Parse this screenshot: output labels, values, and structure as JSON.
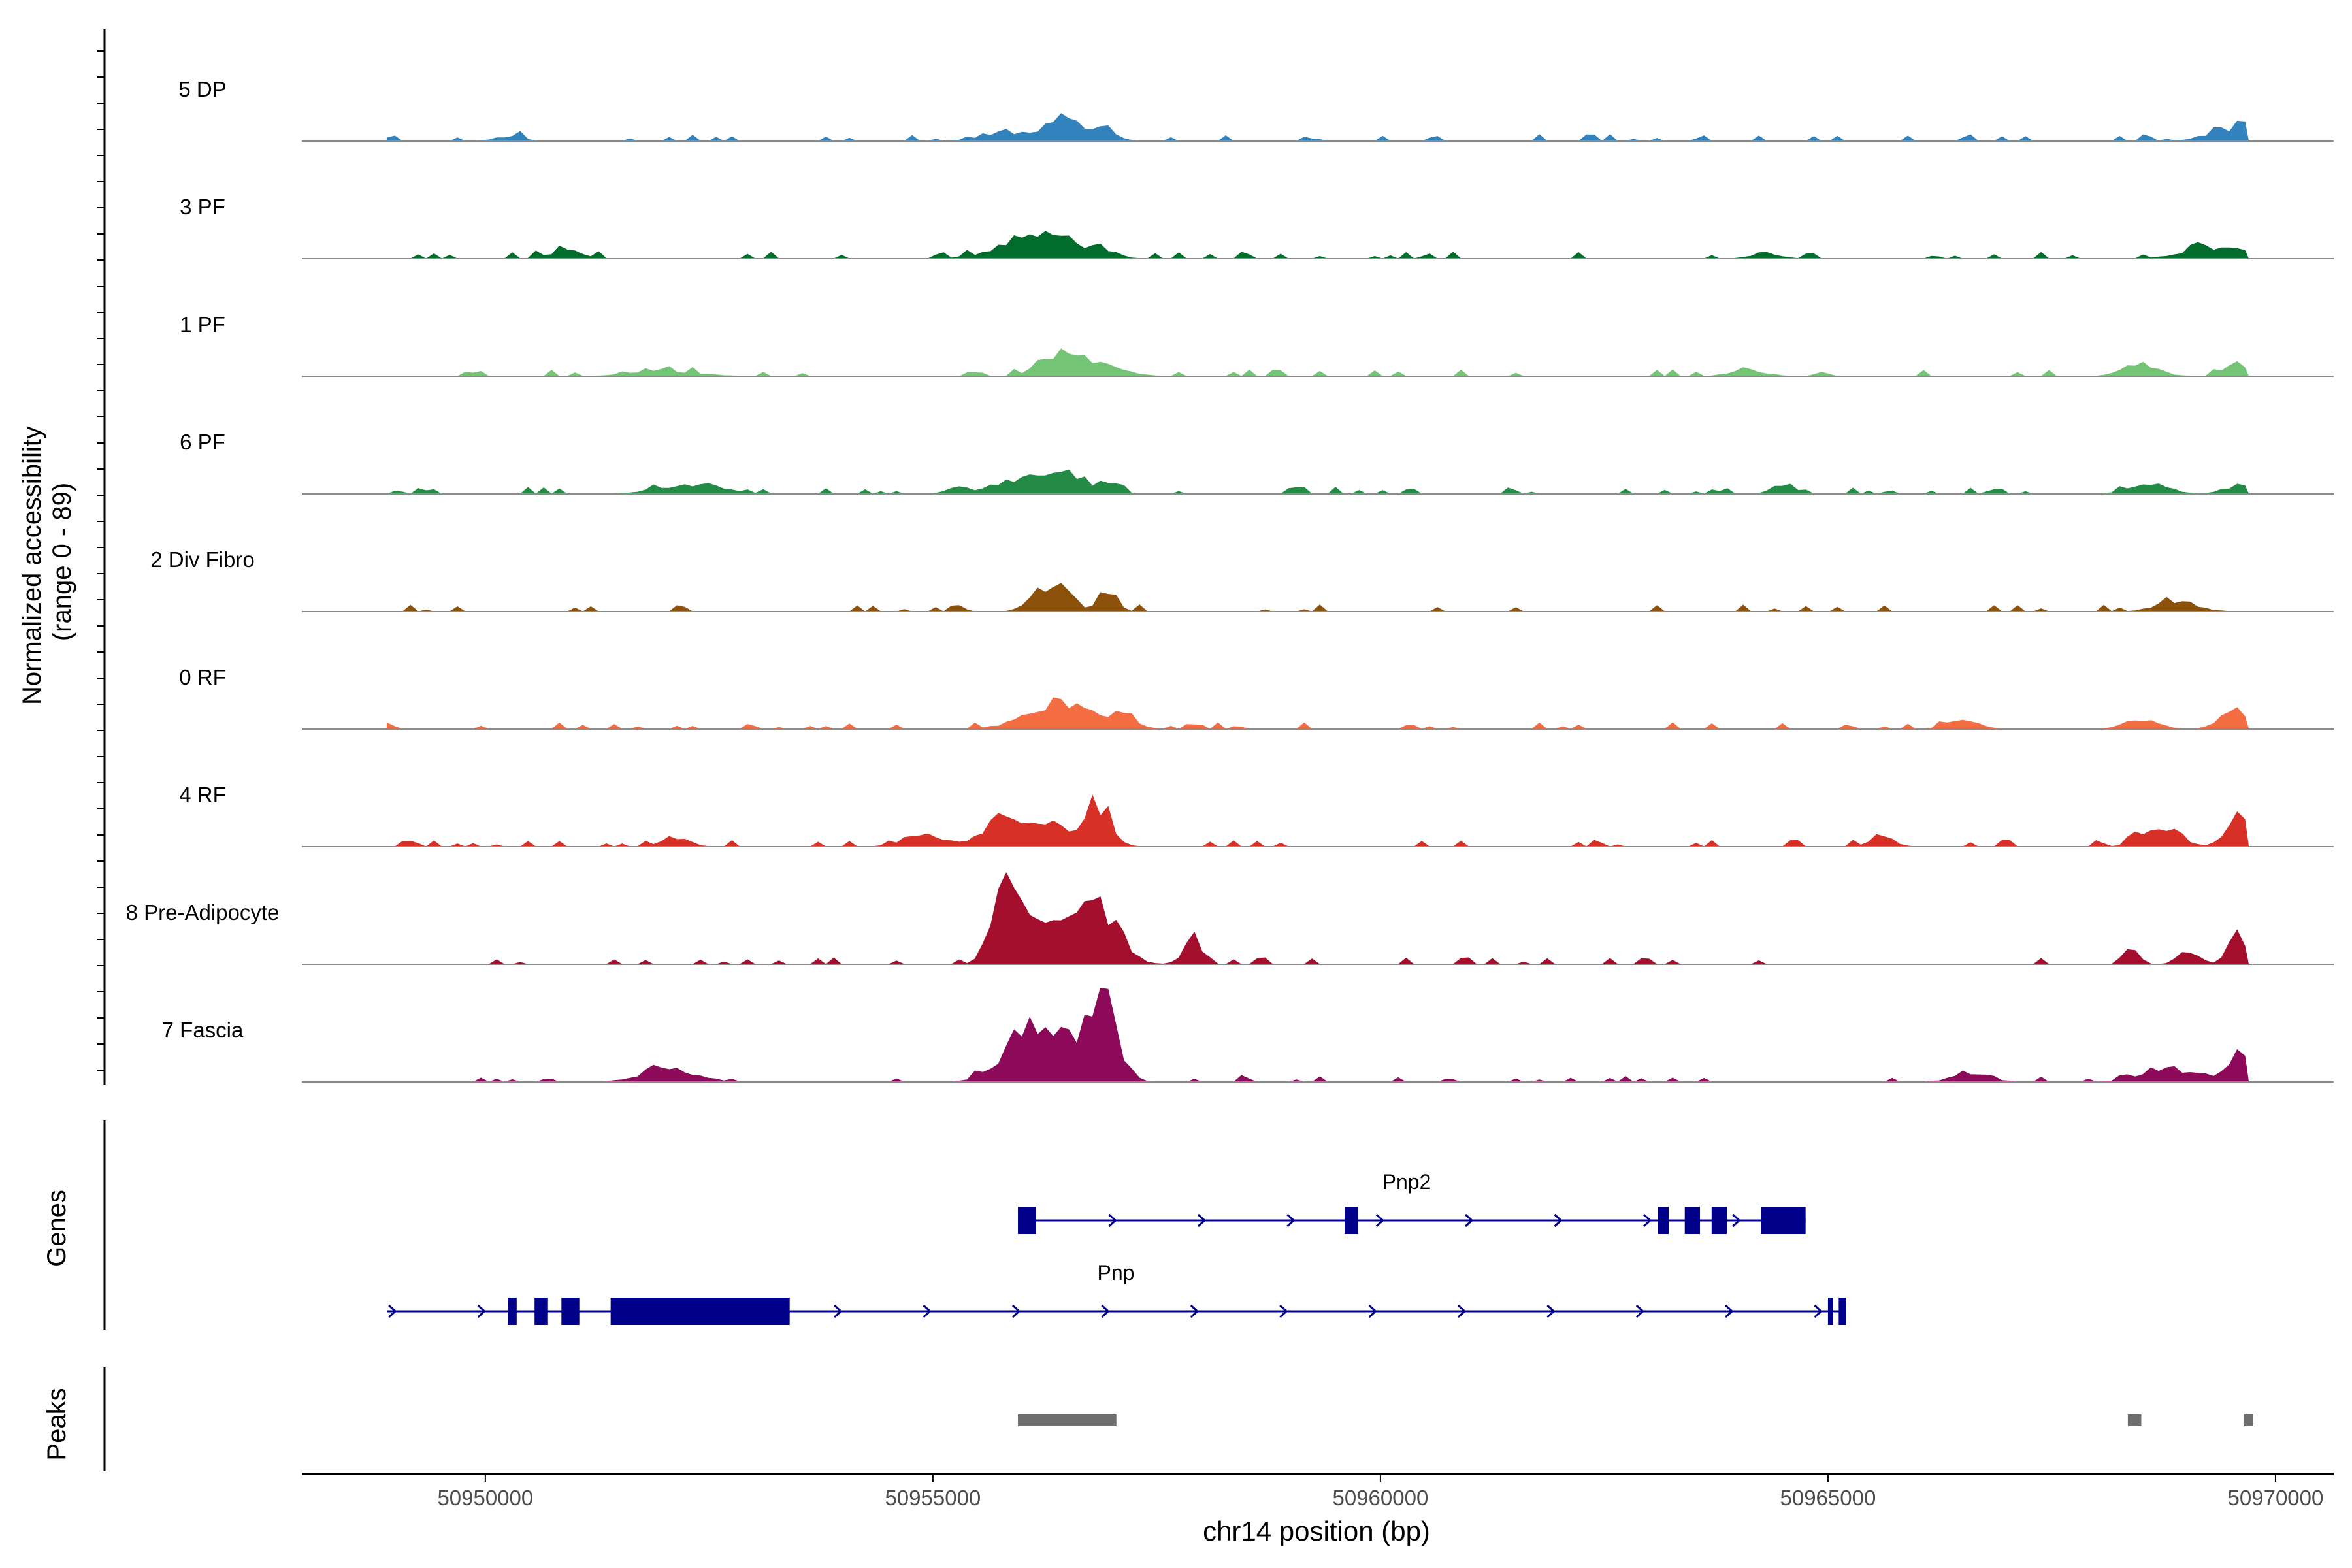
{
  "chart_data": {
    "type": "area",
    "y_axis_label_line1": "Normalized accessibility",
    "y_axis_label_line2": "(range 0 - 89)",
    "ylim": [
      0,
      89
    ],
    "x_axis_label": "chr14 position (bp)",
    "xlim": [
      50947950,
      50970650
    ],
    "x_ticks": [
      50950000,
      50955000,
      50960000,
      50965000,
      50970000
    ],
    "x_tick_labels": [
      "50950000",
      "50955000",
      "50960000",
      "50965000",
      "50970000"
    ],
    "region": [
      50948900,
      50969700
    ],
    "panel_labels": {
      "genes": "Genes",
      "peaks": "Peaks"
    },
    "series": [
      {
        "name": "5 DP",
        "color": "#3182bd",
        "peaks": [
          [
            50950250,
            5,
            150
          ],
          [
            50955800,
            10,
            250
          ],
          [
            50956450,
            22,
            180
          ],
          [
            50956900,
            12,
            150
          ],
          [
            50969300,
            8,
            180
          ],
          [
            50969650,
            22,
            90
          ]
        ]
      },
      {
        "name": "3 PF",
        "color": "#006d2c",
        "peaks": [
          [
            50950900,
            8,
            180
          ],
          [
            50955900,
            14,
            300
          ],
          [
            50956400,
            20,
            280
          ],
          [
            50956900,
            8,
            150
          ],
          [
            50964300,
            6,
            150
          ],
          [
            50969200,
            10,
            280
          ],
          [
            50969600,
            8,
            150
          ]
        ]
      },
      {
        "name": "1 PF",
        "color": "#74c476",
        "peaks": [
          [
            50952000,
            6,
            350
          ],
          [
            50956400,
            22,
            200
          ],
          [
            50956900,
            10,
            250
          ],
          [
            50964100,
            6,
            200
          ],
          [
            50968500,
            12,
            200
          ],
          [
            50969600,
            12,
            150
          ]
        ]
      },
      {
        "name": "6 PF",
        "color": "#238b45",
        "peaks": [
          [
            50952300,
            8,
            350
          ],
          [
            50955300,
            8,
            120
          ],
          [
            50956000,
            18,
            200
          ],
          [
            50956450,
            22,
            180
          ],
          [
            50956950,
            12,
            120
          ],
          [
            50964500,
            10,
            120
          ],
          [
            50968600,
            10,
            220
          ],
          [
            50969600,
            10,
            150
          ]
        ]
      },
      {
        "name": "2 Div Fibro",
        "color": "#8c510a",
        "peaks": [
          [
            50956150,
            20,
            120
          ],
          [
            50956450,
            24,
            120
          ],
          [
            50956950,
            22,
            100
          ],
          [
            50968900,
            10,
            220
          ]
        ]
      },
      {
        "name": "0 RF",
        "color": "#f46d43",
        "peaks": [
          [
            50956200,
            18,
            280
          ],
          [
            50956600,
            16,
            250
          ],
          [
            50957100,
            10,
            180
          ],
          [
            50966500,
            8,
            180
          ],
          [
            50968500,
            10,
            180
          ],
          [
            50969550,
            20,
            160
          ]
        ]
      },
      {
        "name": "4 RF",
        "color": "#d73027",
        "peaks": [
          [
            50952100,
            10,
            150
          ],
          [
            50954900,
            14,
            220
          ],
          [
            50955800,
            30,
            220
          ],
          [
            50956300,
            24,
            200
          ],
          [
            50956850,
            45,
            140
          ],
          [
            50965600,
            14,
            120
          ],
          [
            50968700,
            22,
            200
          ],
          [
            50969600,
            32,
            140
          ]
        ]
      },
      {
        "name": "8 Pre-Adipocyte",
        "color": "#a50f2e",
        "peaks": [
          [
            50955850,
            89,
            160
          ],
          [
            50956350,
            45,
            220
          ],
          [
            50956850,
            60,
            220
          ],
          [
            50957900,
            28,
            100
          ],
          [
            50968400,
            16,
            80
          ],
          [
            50969000,
            14,
            100
          ],
          [
            50969550,
            30,
            100
          ]
        ]
      },
      {
        "name": "7 Fascia",
        "color": "#8c0a59",
        "peaks": [
          [
            50952050,
            12,
            300
          ],
          [
            50956000,
            40,
            260
          ],
          [
            50956400,
            38,
            250
          ],
          [
            50956900,
            85,
            160
          ],
          [
            50966600,
            10,
            200
          ],
          [
            50968800,
            14,
            300
          ],
          [
            50969650,
            35,
            150
          ]
        ]
      }
    ],
    "genes": [
      {
        "name": "Pnp2",
        "strand": "+",
        "start": 50955950,
        "end": 50964750,
        "exons": [
          [
            50955950,
            50956150
          ],
          [
            50959600,
            50959750
          ],
          [
            50963100,
            50963220
          ],
          [
            50963400,
            50963570
          ],
          [
            50963700,
            50963870
          ],
          [
            50964250,
            50964750
          ]
        ]
      },
      {
        "name": "Pnp",
        "strand": "+",
        "start": 50948900,
        "end": 50965200,
        "exons": [
          [
            50950250,
            50950350
          ],
          [
            50950550,
            50950700
          ],
          [
            50950850,
            50951050
          ],
          [
            50951400,
            50953400
          ],
          [
            50965000,
            50965050
          ],
          [
            50965120,
            50965200
          ]
        ]
      }
    ],
    "peaks": [
      [
        50955950,
        50957050
      ],
      [
        50968350,
        50968500
      ],
      [
        50969650,
        50969750
      ]
    ]
  }
}
